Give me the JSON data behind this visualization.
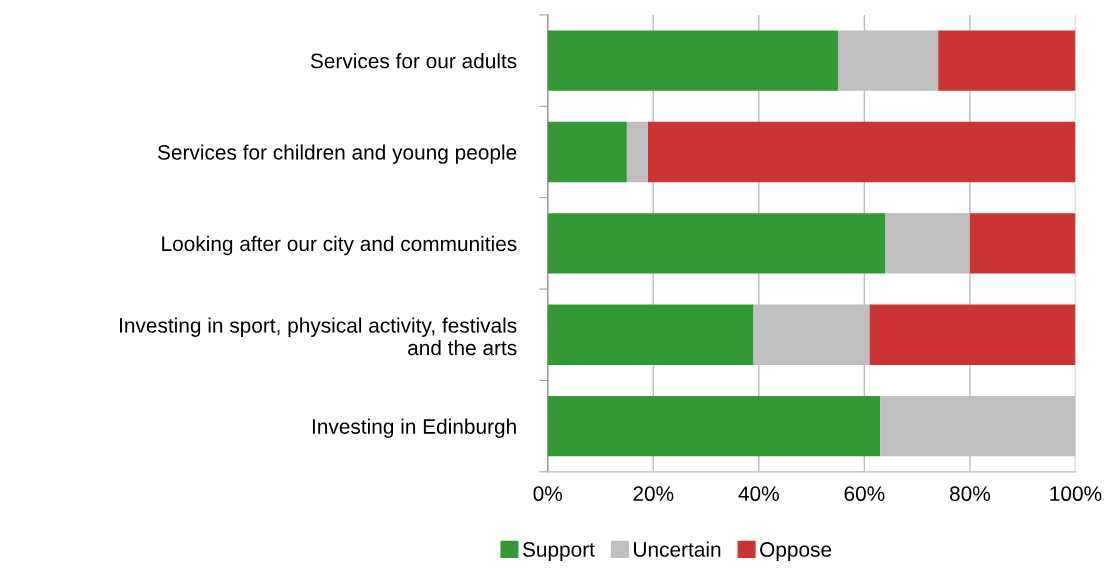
{
  "chart_data": {
    "type": "bar",
    "orientation": "horizontal",
    "stacked": true,
    "categories": [
      "Services for our adults",
      "Services for children and young people",
      "Looking after our city and communities",
      "Investing in sport, physical activity, festivals\nand the arts",
      "Investing in Edinburgh"
    ],
    "series": [
      {
        "name": "Support",
        "color": "#339933",
        "values": [
          55,
          15,
          64,
          39,
          63
        ]
      },
      {
        "name": "Uncertain",
        "color": "#bfbfbf",
        "values": [
          19,
          4,
          16,
          22,
          37
        ]
      },
      {
        "name": "Oppose",
        "color": "#cc3333",
        "values": [
          26,
          81,
          20,
          39,
          0
        ]
      }
    ],
    "xlim": [
      0,
      100
    ],
    "xticks": [
      {
        "value": 0,
        "label": "0%"
      },
      {
        "value": 20,
        "label": "20%"
      },
      {
        "value": 40,
        "label": "40%"
      },
      {
        "value": 60,
        "label": "60%"
      },
      {
        "value": 80,
        "label": "80%"
      },
      {
        "value": 100,
        "label": "100%"
      }
    ],
    "grid": "x",
    "legend": "bottom"
  }
}
